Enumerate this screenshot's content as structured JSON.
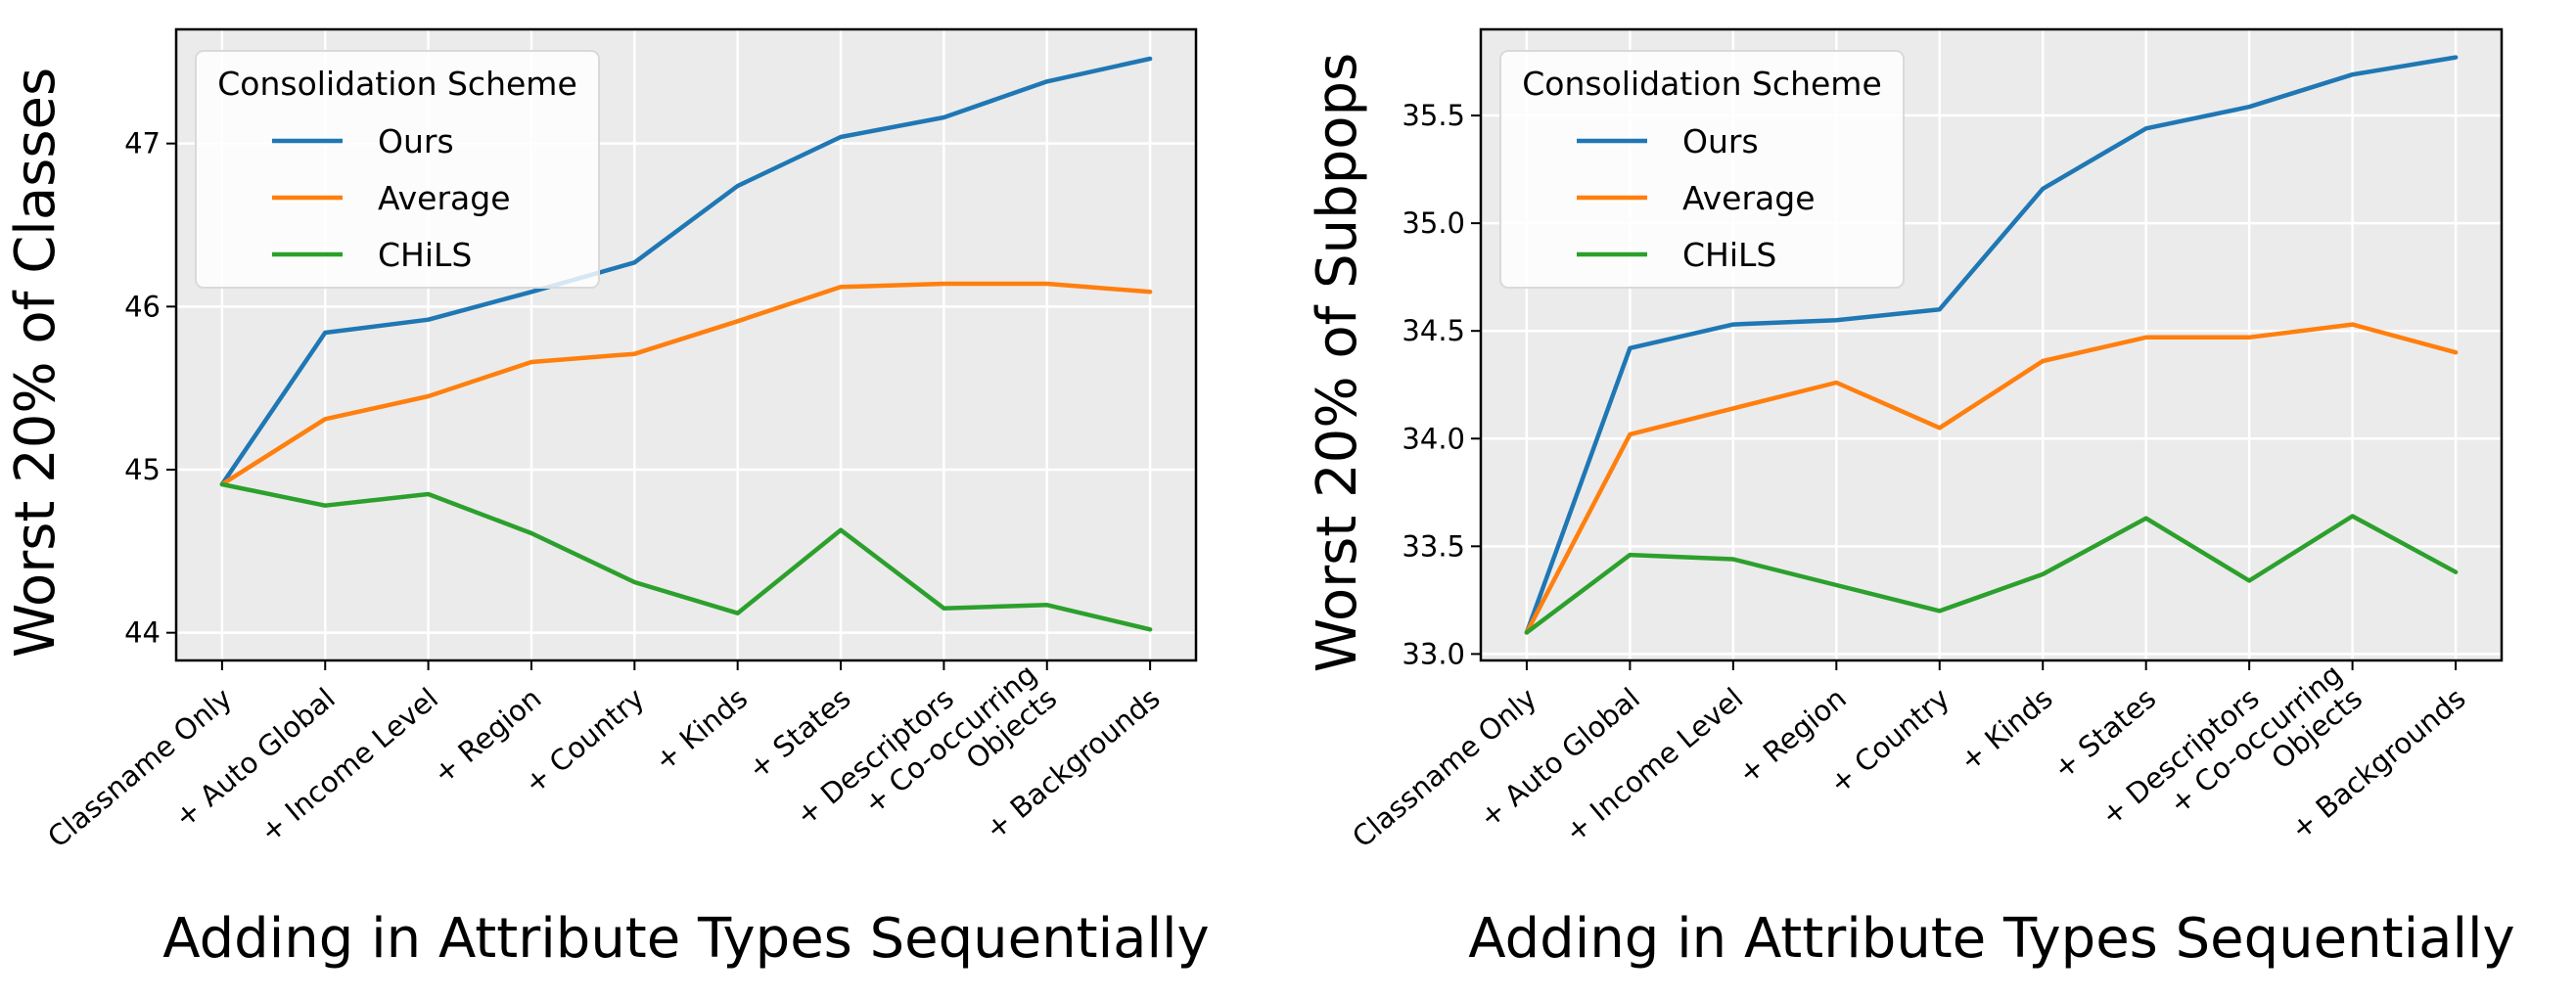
{
  "chart_data": [
    {
      "type": "line",
      "categories": [
        "Classname Only",
        "+ Auto Global",
        "+ Income Level",
        "+ Region",
        "+ Country",
        "+ Kinds",
        "+ States",
        "+ Descriptors",
        "+ Co-occurring\nObjects",
        "+ Backgrounds"
      ],
      "series": [
        {
          "name": "Ours",
          "color": "#1f77b4",
          "values": [
            44.91,
            45.84,
            45.92,
            46.09,
            46.27,
            46.74,
            47.04,
            47.16,
            47.38,
            47.52
          ]
        },
        {
          "name": "Average",
          "color": "#ff7f0e",
          "values": [
            44.91,
            45.31,
            45.45,
            45.66,
            45.71,
            45.91,
            46.12,
            46.14,
            46.14,
            46.09
          ]
        },
        {
          "name": "CHiLS",
          "color": "#2ca02c",
          "values": [
            44.91,
            44.78,
            44.85,
            44.61,
            44.31,
            44.12,
            44.63,
            44.15,
            44.17,
            44.02
          ]
        }
      ],
      "ylabel": "Worst 20% of Classes",
      "xlabel": "Adding in Attribute Types Sequentially",
      "ylim": [
        43.83,
        47.7
      ],
      "yticks": [
        44,
        45,
        46,
        47
      ],
      "ytick_labels": [
        "44",
        "45",
        "46",
        "47"
      ],
      "grid": true,
      "legend": {
        "title": "Consolidation Scheme",
        "placement": "upper-left"
      }
    },
    {
      "type": "line",
      "categories": [
        "Classname Only",
        "+ Auto Global",
        "+ Income Level",
        "+ Region",
        "+ Country",
        "+ Kinds",
        "+ States",
        "+ Descriptors",
        "+ Co-occurring\nObjects",
        "+ Backgrounds"
      ],
      "series": [
        {
          "name": "Ours",
          "color": "#1f77b4",
          "values": [
            33.1,
            34.42,
            34.53,
            34.55,
            34.6,
            35.16,
            35.44,
            35.54,
            35.69,
            35.77
          ]
        },
        {
          "name": "Average",
          "color": "#ff7f0e",
          "values": [
            33.1,
            34.02,
            34.14,
            34.26,
            34.05,
            34.36,
            34.47,
            34.47,
            34.53,
            34.4
          ]
        },
        {
          "name": "CHiLS",
          "color": "#2ca02c",
          "values": [
            33.1,
            33.46,
            33.44,
            33.32,
            33.2,
            33.37,
            33.63,
            33.34,
            33.64,
            33.38
          ]
        }
      ],
      "ylabel": "Worst 20% of Subpops",
      "xlabel": "Adding in Attribute Types Sequentially",
      "ylim": [
        32.97,
        35.9
      ],
      "yticks": [
        33.0,
        33.5,
        34.0,
        34.5,
        35.0,
        35.5
      ],
      "ytick_labels": [
        "33.0",
        "33.5",
        "34.0",
        "34.5",
        "35.0",
        "35.5"
      ],
      "grid": true,
      "legend": {
        "title": "Consolidation Scheme",
        "placement": "upper-left"
      }
    }
  ]
}
